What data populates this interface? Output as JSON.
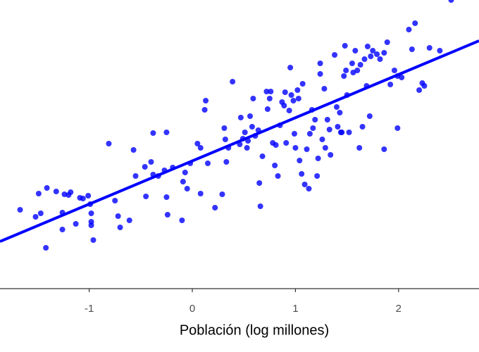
{
  "chart_data": {
    "type": "scatter",
    "xlabel": "Población (log millones)",
    "xlim": [
      -1.865,
      2.78
    ],
    "xticks": [
      -1,
      0,
      1,
      2
    ],
    "ylim": [
      0,
      41
    ],
    "points": {
      "color": "#0000ff",
      "x": [
        -1.67,
        -1.52,
        -1.47,
        -1.42,
        -1.49,
        -1.41,
        -1.32,
        -1.26,
        -1.26,
        -1.24,
        -1.2,
        -1.18,
        -1.13,
        -1.09,
        -1.06,
        -1.01,
        -0.98,
        -0.98,
        -0.98,
        -0.96,
        -0.99,
        -0.81,
        -0.75,
        -0.72,
        -0.7,
        -0.61,
        -0.57,
        -0.55,
        -0.46,
        -0.45,
        -0.4,
        -0.38,
        -0.38,
        -0.33,
        -0.27,
        -0.25,
        -0.25,
        -0.24,
        -0.19,
        -0.1,
        -0.09,
        -0.07,
        -0.05,
        -0.02,
        0.05,
        0.08,
        0.08,
        0.12,
        0.13,
        0.15,
        0.22,
        0.29,
        0.31,
        0.32,
        0.33,
        0.35,
        0.39,
        0.46,
        0.47,
        0.49,
        0.51,
        0.53,
        0.54,
        0.56,
        0.58,
        0.59,
        0.61,
        0.64,
        0.65,
        0.66,
        0.68,
        0.72,
        0.73,
        0.75,
        0.76,
        0.78,
        0.8,
        0.81,
        0.83,
        0.85,
        0.87,
        0.89,
        0.9,
        0.91,
        0.94,
        0.95,
        0.96,
        0.98,
        0.99,
        1.0,
        1.02,
        1.03,
        1.04,
        1.06,
        1.07,
        1.09,
        1.11,
        1.13,
        1.14,
        1.16,
        1.17,
        1.19,
        1.21,
        1.22,
        1.24,
        1.24,
        1.26,
        1.28,
        1.29,
        1.31,
        1.33,
        1.34,
        1.38,
        1.4,
        1.41,
        1.43,
        1.44,
        1.45,
        1.47,
        1.48,
        1.49,
        1.5,
        1.52,
        1.55,
        1.56,
        1.58,
        1.6,
        1.62,
        1.63,
        1.65,
        1.67,
        1.69,
        1.7,
        1.72,
        1.73,
        1.75,
        1.79,
        1.82,
        1.86,
        1.86,
        1.89,
        1.92,
        1.96,
        1.99,
        1.99,
        2.03,
        2.1,
        2.13,
        2.16,
        2.2,
        2.23,
        2.25,
        2.3,
        2.4,
        2.51
      ],
      "y": [
        11.2,
        10.2,
        10.7,
        5.8,
        13.5,
        14.3,
        13.8,
        10.8,
        8.4,
        13.4,
        13.3,
        13.7,
        9.2,
        12.9,
        12.8,
        13.2,
        10.7,
        9.5,
        9.0,
        6.9,
        12.0,
        20.6,
        12.5,
        10.3,
        8.7,
        9.7,
        19.7,
        16.0,
        17.3,
        13.1,
        18.0,
        22.1,
        16.2,
        16.0,
        16.8,
        22.2,
        13.0,
        10.5,
        17.2,
        9.7,
        15.2,
        16.5,
        14.2,
        17.8,
        20.6,
        20.0,
        13.5,
        25.4,
        26.7,
        17.8,
        11.5,
        13.4,
        22.8,
        21.2,
        18.0,
        20.0,
        29.4,
        20.5,
        24.3,
        21.3,
        22.2,
        20.0,
        21.0,
        24.5,
        23.0,
        27.0,
        21.7,
        22.5,
        15.0,
        11.7,
        18.8,
        28.0,
        25.5,
        27.0,
        28.0,
        20.7,
        17.5,
        20.4,
        16.0,
        23.2,
        26.5,
        26.0,
        27.9,
        20.7,
        25.3,
        31.4,
        27.5,
        26.7,
        22.0,
        20.0,
        28.2,
        27.0,
        18.2,
        16.3,
        29.1,
        14.8,
        19.8,
        14.2,
        22.0,
        25.4,
        22.8,
        24.0,
        16.0,
        18.5,
        30.5,
        32.0,
        21.2,
        28.4,
        20.0,
        24.0,
        22.6,
        19.0,
        33.2,
        25.8,
        23.0,
        25.0,
        22.2,
        22.2,
        30.2,
        34.5,
        31.0,
        27.5,
        22.2,
        32.0,
        30.7,
        33.8,
        31.0,
        20.0,
        31.8,
        23.0,
        32.6,
        28.8,
        34.4,
        24.5,
        33.0,
        33.8,
        33.3,
        32.6,
        19.8,
        33.5,
        35.0,
        29.0,
        31.0,
        30.2,
        22.8,
        30.0,
        36.8,
        34.0,
        37.7,
        28.2,
        29.2,
        28.8,
        34.2,
        33.8,
        41.0
      ]
    },
    "fit_line": {
      "color": "#0000ff",
      "x": [
        -1.865,
        2.78
      ],
      "y": [
        6.7,
        35.2
      ]
    }
  }
}
